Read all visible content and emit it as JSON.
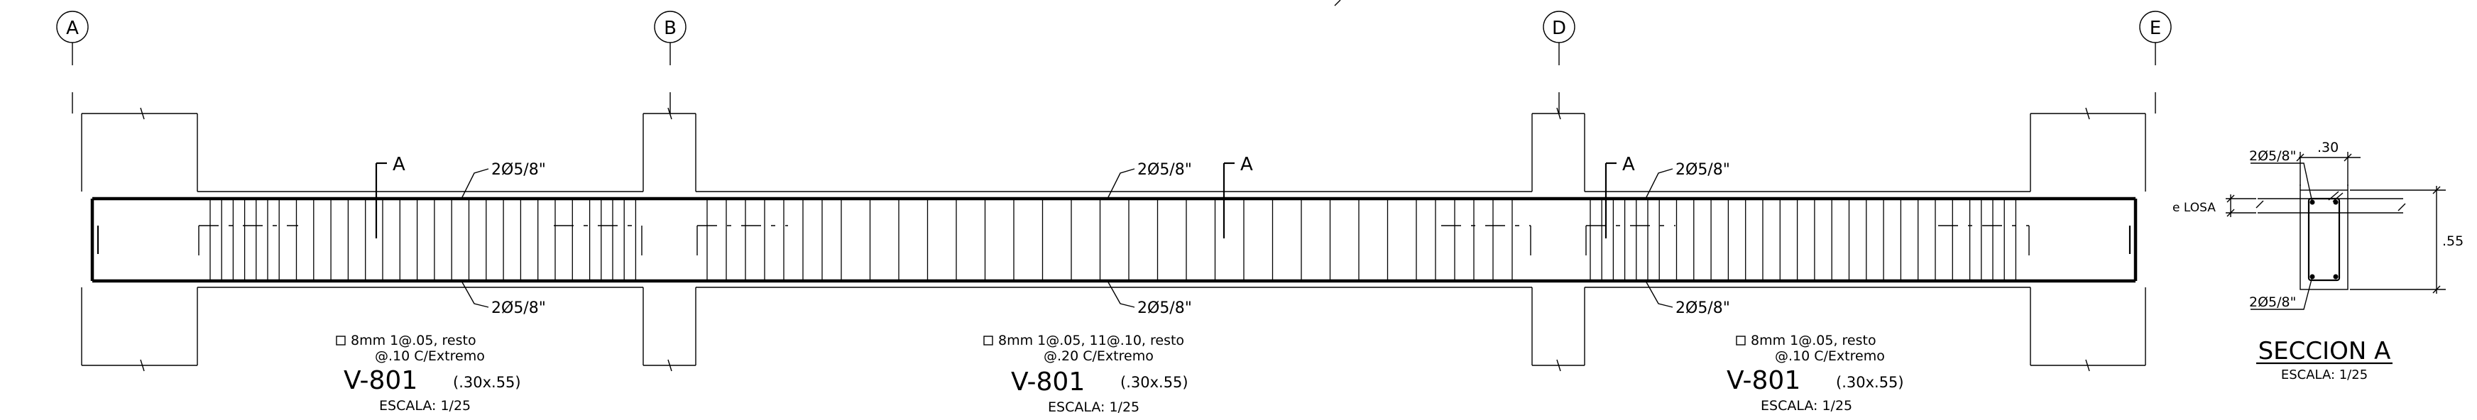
{
  "axes": {
    "a": "A",
    "b": "B",
    "d": "D",
    "e": "E"
  },
  "section_marks": {
    "cut1": "A",
    "cut2": "A",
    "cut3": "A"
  },
  "rebar_callouts": {
    "top_1": "2Ø5/8\"",
    "bottom_1": "2Ø5/8\"",
    "top_2": "2Ø5/8\"",
    "bottom_2": "2Ø5/8\"",
    "top_3": "2Ø5/8\"",
    "bottom_3": "2Ø5/8\""
  },
  "beams": [
    {
      "stirrup_line1": "8mm 1@.05, resto",
      "stirrup_line2": "@.10 C/Extremo",
      "title": "V-801",
      "dims": "(.30x.55)",
      "scale": "ESCALA: 1/25"
    },
    {
      "stirrup_line1": "8mm 1@.05, 11@.10, resto",
      "stirrup_line2": "@.20 C/Extremo",
      "title": "V-801",
      "dims": "(.30x.55)",
      "scale": "ESCALA: 1/25"
    },
    {
      "stirrup_line1": "8mm 1@.05, resto",
      "stirrup_line2": "@.10 C/Extremo",
      "title": "V-801",
      "dims": "(.30x.55)",
      "scale": "ESCALA: 1/25"
    }
  ],
  "section": {
    "top_bars": "2Ø5/8\"",
    "bottom_bars": "2Ø5/8\"",
    "width_dim": ".30",
    "height_dim": ".55",
    "slab_label": "e LOSA",
    "title": "SECCION A",
    "scale": "ESCALA: 1/25"
  }
}
